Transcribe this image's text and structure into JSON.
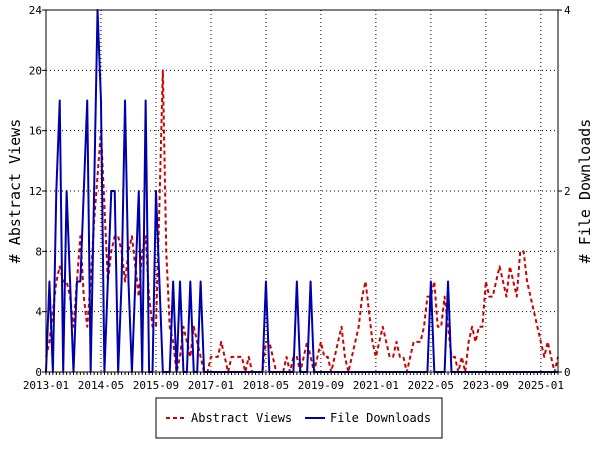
{
  "chart_data": {
    "type": "line",
    "x_unit": "month",
    "x_ticks": [
      "2013-01",
      "2014-05",
      "2015-09",
      "2017-01",
      "2018-05",
      "2019-09",
      "2021-01",
      "2022-05",
      "2023-09",
      "2025-01"
    ],
    "xlim": [
      "2013-01",
      "2025-06"
    ],
    "ylabel_left": "# Abstract Views",
    "ylabel_right": "# File Downloads",
    "ylim_left": [
      0,
      24
    ],
    "ylim_right": [
      0,
      4
    ],
    "y_ticks_left": [
      0,
      4,
      8,
      12,
      16,
      20,
      24
    ],
    "y_ticks_right": [
      0,
      2,
      4
    ],
    "legend_position": "bottom-center",
    "series": [
      {
        "name": "Abstract Views",
        "axis": "left",
        "color": "#cc0000",
        "style": "dashed",
        "x": [
          "2013-01",
          "2013-02",
          "2013-03",
          "2013-04",
          "2013-05",
          "2013-06",
          "2013-07",
          "2013-08",
          "2013-09",
          "2013-10",
          "2013-11",
          "2013-12",
          "2014-01",
          "2014-02",
          "2014-03",
          "2014-04",
          "2014-05",
          "2014-06",
          "2014-07",
          "2014-08",
          "2014-09",
          "2014-10",
          "2014-11",
          "2014-12",
          "2015-01",
          "2015-02",
          "2015-03",
          "2015-04",
          "2015-05",
          "2015-06",
          "2015-07",
          "2015-08",
          "2015-09",
          "2015-10",
          "2015-11",
          "2015-12",
          "2016-01",
          "2016-02",
          "2016-03",
          "2016-04",
          "2016-05",
          "2016-06",
          "2016-07",
          "2016-08",
          "2016-09",
          "2016-10",
          "2016-11",
          "2016-12",
          "2017-01",
          "2017-02",
          "2017-03",
          "2017-04",
          "2017-05",
          "2017-06",
          "2017-07",
          "2017-08",
          "2017-09",
          "2017-10",
          "2017-11",
          "2017-12",
          "2018-01",
          "2018-02",
          "2018-03",
          "2018-04",
          "2018-05",
          "2018-06",
          "2018-07",
          "2018-08",
          "2018-09",
          "2018-10",
          "2018-11",
          "2018-12",
          "2019-01",
          "2019-02",
          "2019-03",
          "2019-04",
          "2019-05",
          "2019-06",
          "2019-07",
          "2019-08",
          "2019-09",
          "2019-10",
          "2019-11",
          "2019-12",
          "2020-01",
          "2020-02",
          "2020-03",
          "2020-04",
          "2020-05",
          "2020-06",
          "2020-07",
          "2020-08",
          "2020-09",
          "2020-10",
          "2020-11",
          "2020-12",
          "2021-01",
          "2021-02",
          "2021-03",
          "2021-04",
          "2021-05",
          "2021-06",
          "2021-07",
          "2021-08",
          "2021-09",
          "2021-10",
          "2021-11",
          "2021-12",
          "2022-01",
          "2022-02",
          "2022-03",
          "2022-04",
          "2022-05",
          "2022-06",
          "2022-07",
          "2022-08",
          "2022-09",
          "2022-10",
          "2022-11",
          "2022-12",
          "2023-01",
          "2023-02",
          "2023-03",
          "2023-04",
          "2023-05",
          "2023-06",
          "2023-07",
          "2023-08",
          "2023-09",
          "2023-10",
          "2023-11",
          "2023-12",
          "2024-01",
          "2024-02",
          "2024-03",
          "2024-04",
          "2024-05",
          "2024-06",
          "2024-07",
          "2024-08",
          "2024-09",
          "2024-10",
          "2024-11",
          "2024-12",
          "2025-01",
          "2025-02",
          "2025-03",
          "2025-04",
          "2025-05",
          "2025-06"
        ],
        "values": [
          1,
          2,
          4,
          6,
          7,
          6,
          6,
          5,
          3,
          6,
          9,
          5,
          3,
          6,
          10,
          13,
          16,
          11,
          6,
          8,
          9,
          9,
          8,
          6,
          8,
          9,
          7,
          5,
          8,
          9,
          5,
          3,
          3,
          11,
          20,
          8,
          3,
          2,
          0,
          1,
          3,
          2,
          1,
          3,
          2,
          1,
          0,
          0,
          1,
          1,
          1,
          2,
          1,
          0,
          1,
          1,
          1,
          1,
          0,
          1,
          0,
          0,
          0,
          0,
          2,
          2,
          1,
          0,
          0,
          0,
          1,
          0,
          1,
          1,
          0,
          1,
          2,
          1,
          0,
          1,
          2,
          1,
          1,
          0,
          1,
          2,
          3,
          1,
          0,
          1,
          2,
          3,
          5,
          6,
          4,
          2,
          1,
          2,
          3,
          2,
          1,
          1,
          2,
          1,
          1,
          0,
          1,
          2,
          2,
          2,
          3,
          5,
          5,
          6,
          3,
          3,
          5,
          3,
          1,
          1,
          0,
          1,
          0,
          2,
          3,
          2,
          3,
          3,
          6,
          5,
          5,
          6,
          7,
          6,
          5,
          7,
          6,
          5,
          8,
          8,
          6,
          5,
          4,
          3,
          2,
          1,
          2,
          1,
          0,
          1
        ],
        "legend_label": "Abstract Views"
      },
      {
        "name": "File Downloads",
        "axis": "right",
        "color": "#0000aa",
        "style": "solid",
        "x": [
          "2013-01",
          "2013-02",
          "2013-03",
          "2013-04",
          "2013-05",
          "2013-06",
          "2013-07",
          "2013-08",
          "2013-09",
          "2013-10",
          "2013-11",
          "2013-12",
          "2014-01",
          "2014-02",
          "2014-03",
          "2014-04",
          "2014-05",
          "2014-06",
          "2014-07",
          "2014-08",
          "2014-09",
          "2014-10",
          "2014-11",
          "2014-12",
          "2015-01",
          "2015-02",
          "2015-03",
          "2015-04",
          "2015-05",
          "2015-06",
          "2015-07",
          "2015-08",
          "2015-09",
          "2015-10",
          "2015-11",
          "2015-12",
          "2016-01",
          "2016-02",
          "2016-03",
          "2016-04",
          "2016-05",
          "2016-06",
          "2016-07",
          "2016-08",
          "2016-09",
          "2016-10",
          "2016-11",
          "2016-12",
          "2017-01",
          "2017-02",
          "2017-03",
          "2017-04",
          "2017-05",
          "2017-06",
          "2017-07",
          "2017-08",
          "2017-09",
          "2017-10",
          "2017-11",
          "2017-12",
          "2018-01",
          "2018-02",
          "2018-03",
          "2018-04",
          "2018-05",
          "2018-06",
          "2018-07",
          "2018-08",
          "2018-09",
          "2018-10",
          "2018-11",
          "2018-12",
          "2019-01",
          "2019-02",
          "2019-03",
          "2019-04",
          "2019-05",
          "2019-06",
          "2019-07",
          "2019-08",
          "2019-09",
          "2019-10",
          "2019-11",
          "2019-12",
          "2020-01",
          "2020-02",
          "2020-03",
          "2020-04",
          "2020-05",
          "2020-06",
          "2020-07",
          "2020-08",
          "2020-09",
          "2020-10",
          "2020-11",
          "2020-12",
          "2021-01",
          "2021-02",
          "2021-03",
          "2021-04",
          "2021-05",
          "2021-06",
          "2021-07",
          "2021-08",
          "2021-09",
          "2021-10",
          "2021-11",
          "2021-12",
          "2022-01",
          "2022-02",
          "2022-03",
          "2022-04",
          "2022-05",
          "2022-06",
          "2022-07",
          "2022-08",
          "2022-09",
          "2022-10",
          "2022-11",
          "2022-12",
          "2023-01",
          "2023-02",
          "2023-03",
          "2023-04",
          "2023-05",
          "2023-06",
          "2023-07",
          "2023-08",
          "2023-09",
          "2023-10",
          "2023-11",
          "2023-12",
          "2024-01",
          "2024-02",
          "2024-03",
          "2024-04",
          "2024-05",
          "2024-06",
          "2024-07",
          "2024-08",
          "2024-09",
          "2024-10",
          "2024-11",
          "2024-12",
          "2025-01",
          "2025-02",
          "2025-03",
          "2025-04",
          "2025-05",
          "2025-06"
        ],
        "values": [
          0,
          1,
          0,
          2,
          3,
          0,
          2,
          1,
          0,
          1,
          1,
          2,
          3,
          0,
          2,
          4,
          3,
          0,
          1,
          2,
          2,
          0,
          1,
          3,
          1,
          0,
          1,
          2,
          0,
          3,
          0,
          0,
          2,
          1,
          0,
          0,
          0,
          1,
          0,
          1,
          0,
          0,
          1,
          0,
          0,
          1,
          0,
          0,
          0,
          0,
          0,
          0,
          0,
          0,
          0,
          0,
          0,
          0,
          0,
          0,
          0,
          0,
          0,
          0,
          1,
          0,
          0,
          0,
          0,
          0,
          0,
          0,
          0,
          1,
          0,
          0,
          0,
          1,
          0,
          0,
          0,
          0,
          0,
          0,
          0,
          0,
          0,
          0,
          0,
          0,
          0,
          0,
          0,
          0,
          0,
          0,
          0,
          0,
          0,
          0,
          0,
          0,
          0,
          0,
          0,
          0,
          0,
          0,
          0,
          0,
          0,
          0,
          1,
          0,
          0,
          0,
          0,
          1,
          0,
          0,
          0,
          0,
          0,
          0,
          0,
          0,
          0,
          0,
          0,
          0,
          0,
          0,
          0,
          0,
          0,
          0,
          0,
          0,
          0,
          0,
          0,
          0,
          0,
          0,
          0,
          0,
          0,
          0,
          0,
          0
        ],
        "legend_label": "File Downloads"
      }
    ]
  }
}
